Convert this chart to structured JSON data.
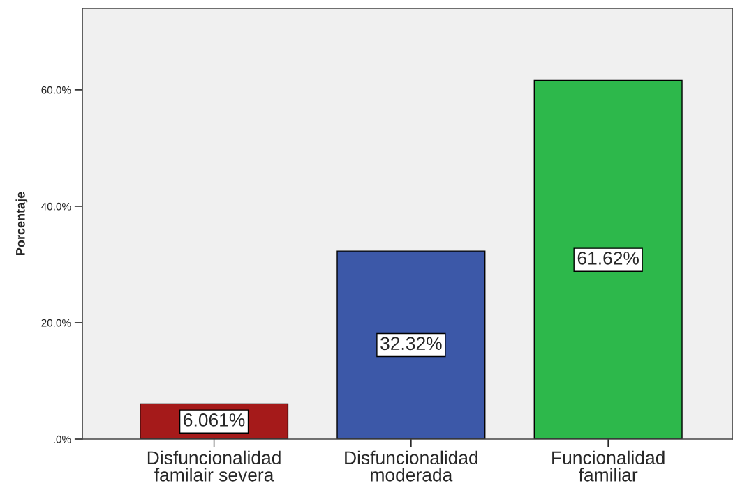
{
  "chart_data": {
    "type": "bar",
    "ylabel": "Porcentaje",
    "categories": [
      "Disfuncionalidad\nfamilair severa",
      "Disfuncionalidad\nmoderada",
      "Funcionalidad\nfamiliar"
    ],
    "values": [
      6.061,
      32.32,
      61.62
    ],
    "colors": [
      "#a51a1a",
      "#3c58a8",
      "#2db84b"
    ],
    "value_labels": [
      "6.061%",
      "32.32%",
      "61.62%"
    ],
    "ylim": [
      0,
      74
    ],
    "yticks": [
      {
        "value": 0,
        "label": ".0%"
      },
      {
        "value": 20,
        "label": "20.0%"
      },
      {
        "value": 40,
        "label": "40.0%"
      },
      {
        "value": 60,
        "label": "60.0%"
      }
    ],
    "grid": false,
    "legend": false
  }
}
